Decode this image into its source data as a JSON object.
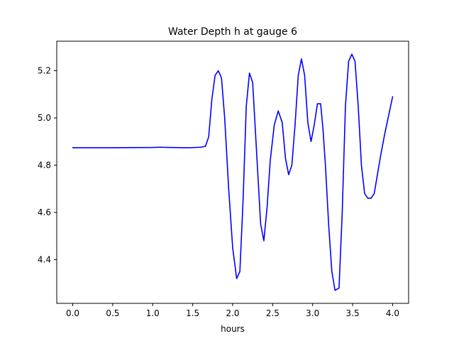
{
  "chart_data": {
    "type": "line",
    "title": "Water Depth h at gauge 6",
    "xlabel": "hours",
    "ylabel": "",
    "xlim": [
      -0.2,
      4.2
    ],
    "ylim": [
      4.215,
      5.325
    ],
    "xticks": [
      0.0,
      0.5,
      1.0,
      1.5,
      2.0,
      2.5,
      3.0,
      3.5,
      4.0
    ],
    "xtick_labels": [
      "0.0",
      "0.5",
      "1.0",
      "1.5",
      "2.0",
      "2.5",
      "3.0",
      "3.5",
      "4.0"
    ],
    "yticks": [
      4.4,
      4.6,
      4.8,
      5.0,
      5.2
    ],
    "ytick_labels": [
      "4.4",
      "4.6",
      "4.8",
      "5.0",
      "5.2"
    ],
    "grid": false,
    "series": [
      {
        "color": "#0000ff",
        "x": [
          0.0,
          0.5,
          1.0,
          1.1,
          1.2,
          1.45,
          1.6,
          1.66,
          1.7,
          1.74,
          1.78,
          1.82,
          1.86,
          1.9,
          1.95,
          2.0,
          2.05,
          2.09,
          2.13,
          2.17,
          2.21,
          2.25,
          2.3,
          2.35,
          2.39,
          2.43,
          2.47,
          2.52,
          2.57,
          2.62,
          2.66,
          2.7,
          2.74,
          2.78,
          2.82,
          2.86,
          2.9,
          2.94,
          2.98,
          3.02,
          3.06,
          3.1,
          3.13,
          3.16,
          3.2,
          3.24,
          3.28,
          3.33,
          3.37,
          3.41,
          3.45,
          3.49,
          3.53,
          3.57,
          3.61,
          3.65,
          3.69,
          3.73,
          3.77,
          3.81,
          3.85,
          3.9,
          3.95,
          4.0
        ],
        "y": [
          4.874,
          4.874,
          4.875,
          4.876,
          4.875,
          4.874,
          4.876,
          4.88,
          4.92,
          5.08,
          5.18,
          5.2,
          5.17,
          5.0,
          4.7,
          4.45,
          4.32,
          4.35,
          4.65,
          5.05,
          5.19,
          5.15,
          4.85,
          4.55,
          4.48,
          4.62,
          4.82,
          4.97,
          5.03,
          4.98,
          4.83,
          4.76,
          4.8,
          4.97,
          5.18,
          5.25,
          5.18,
          4.98,
          4.9,
          4.97,
          5.06,
          5.06,
          4.95,
          4.8,
          4.55,
          4.35,
          4.27,
          4.28,
          4.6,
          5.05,
          5.24,
          5.27,
          5.24,
          5.05,
          4.8,
          4.68,
          4.66,
          4.66,
          4.68,
          4.76,
          4.84,
          4.93,
          5.01,
          5.09
        ]
      }
    ]
  }
}
